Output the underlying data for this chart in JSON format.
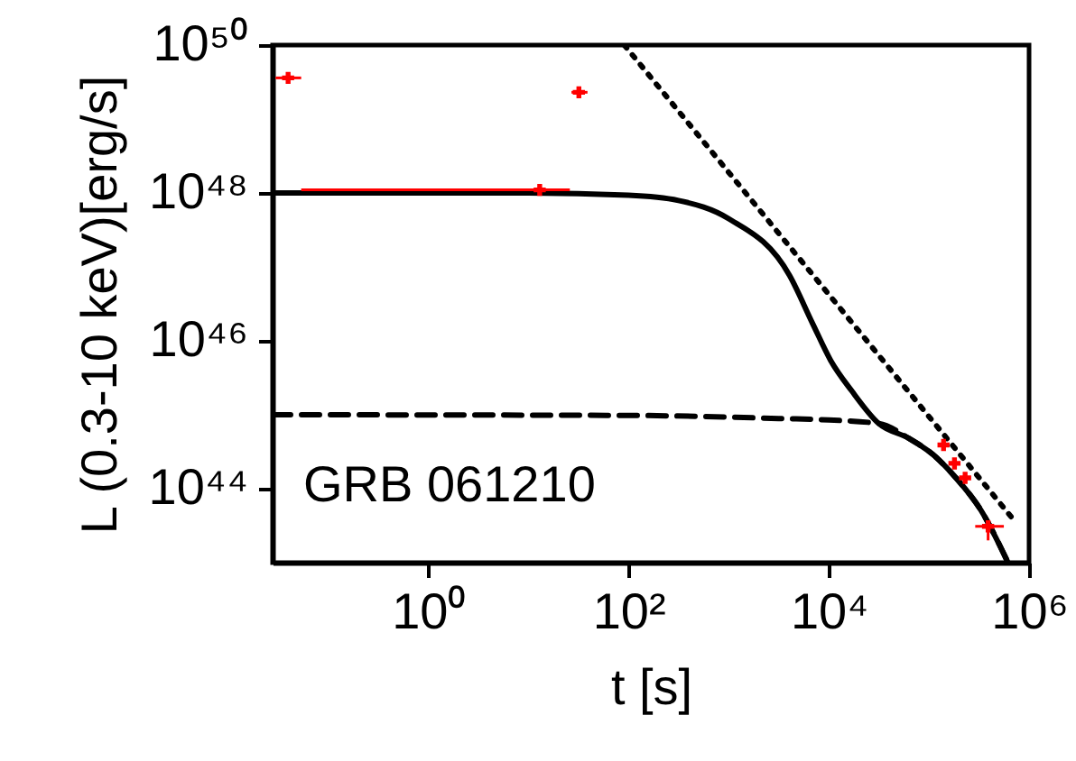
{
  "chart_data": {
    "type": "scatter",
    "xlabel": "t [s]",
    "ylabel": "L (0.3-10 keV)[erg/s]",
    "log": "xy",
    "grid": false,
    "xlim": [
      0.028,
      1000000
    ],
    "ylim": [
      1e+43,
      1e+50
    ],
    "xticks": [
      {
        "value": 1,
        "label": "10⁰"
      },
      {
        "value": 100,
        "label": "10²"
      },
      {
        "value": 10000,
        "label": "10⁴"
      },
      {
        "value": 1000000,
        "label": "10⁶"
      }
    ],
    "yticks": [
      {
        "value": 1e+44,
        "label": "10⁴⁴"
      },
      {
        "value": 1e+46,
        "label": "10⁴⁶"
      },
      {
        "value": 1e+48,
        "label": "10⁴⁸"
      },
      {
        "value": 1e+50,
        "label": "10⁵⁰"
      }
    ],
    "annotations": [
      "GRB 061210"
    ],
    "series": [
      {
        "color": "#ff0000",
        "marker": "cross",
        "x": [
          0.04,
          32,
          13,
          140000,
          180000,
          230000,
          390000
        ],
        "values": [
          3.6e+49,
          2.3e+49,
          1.1e+48,
          3.9e+44,
          2.2e+44,
          1.4e+44,
          3.1e+43
        ],
        "xerrors": [
          [
            0.03,
            0.054
          ],
          [
            27,
            39
          ],
          [
            0.054,
            26
          ],
          null,
          null,
          null,
          [
            290000,
            560000
          ]
        ],
        "errors": [
          null,
          null,
          null,
          null,
          null,
          null,
          [
            2e+43,
            3.1e+43
          ]
        ]
      },
      {
        "type": "line",
        "color": "#000000",
        "line_style": "solid",
        "x": [
          0.028,
          10,
          100,
          316,
          1000,
          4074,
          6918,
          10471,
          16982,
          31623,
          63096,
          109648,
          186209,
          331131,
          616595
        ],
        "values": [
          1e+48,
          1e+48,
          9.3e+47,
          7.9e+47,
          4.5e+47,
          7.6e+46,
          1.7e+46,
          5.4e+45,
          2.1e+45,
          7.6e+44,
          4.8e+44,
          2.9e+44,
          1.4e+44,
          5.1e+43,
          1e+43
        ]
      },
      {
        "type": "line",
        "color": "#000000",
        "line_style": "dashed",
        "x": [
          0.028,
          100,
          1000,
          3162,
          10000,
          31623,
          63096,
          109648,
          186209,
          331131,
          616595
        ],
        "values": [
          1e+45,
          9.8e+44,
          9.3e+44,
          8.9e+44,
          8.5e+44,
          7.6e+44,
          4.8e+44,
          2.9e+44,
          1.4e+44,
          5.1e+43,
          1e+43
        ]
      },
      {
        "type": "line",
        "color": "#000000",
        "line_style": "dotted",
        "x": [
          91,
          690000
        ],
        "values": [
          1e+50,
          3.9e+43
        ]
      }
    ]
  }
}
